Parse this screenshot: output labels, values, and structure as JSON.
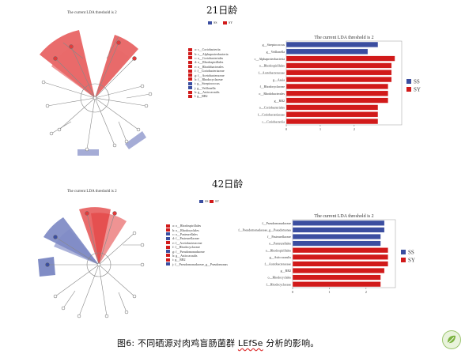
{
  "panels": [
    {
      "age_label": "21日龄",
      "cladogram_title": "The current LDA threshold is 2",
      "top_legend": [
        {
          "label": "SS",
          "color": "#3b4ea0"
        },
        {
          "label": "SY",
          "color": "#d11a1a"
        }
      ],
      "taxa": [
        {
          "label": "a: c__Coriobacteriia",
          "color": "#d11a1a"
        },
        {
          "label": "b: c__Alphaproteobacteria",
          "color": "#d11a1a"
        },
        {
          "label": "c: o__Coriobacteriales",
          "color": "#d11a1a"
        },
        {
          "label": "d: o__Rhodospirillales",
          "color": "#d11a1a"
        },
        {
          "label": "e: o__Rhodobacterales",
          "color": "#d11a1a"
        },
        {
          "label": "f: f__Coriobacteriaceae",
          "color": "#d11a1a"
        },
        {
          "label": "g: f__Acetobacteraceae",
          "color": "#d11a1a"
        },
        {
          "label": "h: f__Rhodocyclaceae",
          "color": "#d11a1a"
        },
        {
          "label": "i: g__Streptococcus",
          "color": "#3b4ea0"
        },
        {
          "label": "j: g__Veillonella",
          "color": "#3b4ea0"
        },
        {
          "label": "k: g__Asticcacaulis",
          "color": "#d11a1a"
        },
        {
          "label": "l: g__RB2",
          "color": "#d11a1a"
        }
      ],
      "chart_data": {
        "type": "bar",
        "title": "The current LDA threshold is 2",
        "categories": [
          "g__Streptococcus",
          "g__Veillonella",
          "c__Alphaproteobacteria",
          "o__Rhodospirillales",
          "f__Acetobacteraceae",
          "g__Asaia",
          "f__Rhodocyclaceae",
          "o__Rhodobacterales",
          "g__RB2",
          "o__Coriobacteriales",
          "f__Coriobacteriaceae",
          "c__Coriobacteriia"
        ],
        "values": [
          2.7,
          2.4,
          3.2,
          3.1,
          3.1,
          3.1,
          3.0,
          3.0,
          3.0,
          2.7,
          2.7,
          2.7
        ],
        "groups": [
          "SS",
          "SS",
          "SY",
          "SY",
          "SY",
          "SY",
          "SY",
          "SY",
          "SY",
          "SY",
          "SY",
          "SY"
        ],
        "xlim": [
          0,
          3.4
        ],
        "xticks": [
          "0",
          "1",
          "2"
        ],
        "legend": [
          {
            "label": "SS",
            "color": "#3b4ea0"
          },
          {
            "label": "SY",
            "color": "#d11a1a"
          }
        ]
      }
    },
    {
      "age_label": "42日龄",
      "cladogram_title": "The current LDA threshold is 2",
      "top_legend": [
        {
          "label": "SS",
          "color": "#3b4ea0"
        },
        {
          "label": "SY",
          "color": "#d11a1a"
        }
      ],
      "taxa": [
        {
          "label": "a: o__Rhodospirillales",
          "color": "#d11a1a"
        },
        {
          "label": "b: o__Rhodocyclales",
          "color": "#d11a1a"
        },
        {
          "label": "c: o__Pasteurellales",
          "color": "#3b4ea0"
        },
        {
          "label": "d: f__Pasteurellaceae",
          "color": "#3b4ea0"
        },
        {
          "label": "e: f__Acetobacteraceae",
          "color": "#d11a1a"
        },
        {
          "label": "f: f__Rhodocyclaceae",
          "color": "#d11a1a"
        },
        {
          "label": "g: f__Pseudomonadaceae",
          "color": "#3b4ea0"
        },
        {
          "label": "h: g__Asticcacaulis",
          "color": "#d11a1a"
        },
        {
          "label": "i: g__RB2",
          "color": "#d11a1a"
        },
        {
          "label": "j: f__Pseudomonadaceae_g__Pseudomonas",
          "color": "#3b4ea0"
        }
      ],
      "chart_data": {
        "type": "bar",
        "title": "The current LDA threshold is 2",
        "categories": [
          "f__Pseudomonadaceae",
          "f__Pseudomonadaceae_g__Pseudomonas",
          "f__Pasteurellaceae",
          "o__Pasteurellales",
          "o__Rhodospirillales",
          "g__Asticcacaulis",
          "f__Acetobacteraceae",
          "g__RB2",
          "o__Rhodocyclales",
          "f__Rhodocyclaceae"
        ],
        "values": [
          2.5,
          2.5,
          2.4,
          2.4,
          2.6,
          2.6,
          2.6,
          2.5,
          2.4,
          2.4
        ],
        "groups": [
          "SS",
          "SS",
          "SS",
          "SS",
          "SY",
          "SY",
          "SY",
          "SY",
          "SY",
          "SY"
        ],
        "xlim": [
          0,
          2.8
        ],
        "xticks": [
          "0",
          "1",
          "2"
        ],
        "legend": [
          {
            "label": "SS",
            "color": "#3b4ea0"
          },
          {
            "label": "SY",
            "color": "#d11a1a"
          }
        ]
      }
    }
  ],
  "caption": {
    "prefix": "图6: 不同硒源对肉鸡盲肠菌群 ",
    "underlined": "LEfSe",
    "suffix": " 分析的影响。"
  },
  "logo_icon": "green-leaf-logo-icon"
}
